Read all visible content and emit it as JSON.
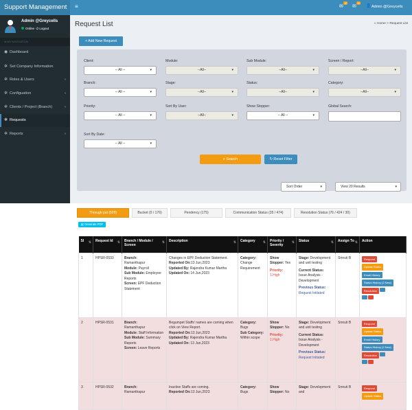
{
  "app": {
    "title": "Support Management"
  },
  "topbar": {
    "notif1_count": "10",
    "notif2_count": "10",
    "admin_label": "Admin @Greycells"
  },
  "user": {
    "name": "Admin @Greycells",
    "status": "Online",
    "logout": "Logout"
  },
  "sidebar": {
    "header": "MAIN NAVIGATION",
    "items": [
      {
        "label": "Dashboard"
      },
      {
        "label": "Set Company Information"
      },
      {
        "label": "Roles & Users"
      },
      {
        "label": "Configuation"
      },
      {
        "label": "Clients / Project (Branch)"
      },
      {
        "label": "Requests"
      },
      {
        "label": "Reports"
      }
    ]
  },
  "page": {
    "title": "Request List",
    "crumb_home": "Home",
    "crumb_sep": ">",
    "crumb_current": "Request List"
  },
  "filters": {
    "add_button": "+ Add New Request",
    "client": {
      "label": "Client:",
      "value": "-- All --"
    },
    "module": {
      "label": "Module:",
      "value": "--All--"
    },
    "submodule": {
      "label": "Sub Module:",
      "value": "--All--"
    },
    "screen": {
      "label": "Screen / Report:",
      "value": "--All--"
    },
    "branch": {
      "label": "Branch:",
      "value": "-- All --"
    },
    "stage": {
      "label": "Stage:",
      "value": "--All--"
    },
    "status": {
      "label": "Status:",
      "value": "--All--"
    },
    "category": {
      "label": "Category:",
      "value": "--All--"
    },
    "priority": {
      "label": "Priority:",
      "value": "-- All --"
    },
    "sortuser": {
      "label": "Sort By User:",
      "value": "--All--"
    },
    "stopper": {
      "label": "Show Stopper:",
      "value": "-- All --"
    },
    "globalsearch": {
      "label": "Global Search:",
      "value": ""
    },
    "sortdate": {
      "label": "Sort By Date:",
      "value": "-- All --"
    },
    "search_button": "Search",
    "reset_button": "Reset Filter"
  },
  "sorting": {
    "order": "Sort Order",
    "view": "View 20 Results"
  },
  "tabs": [
    {
      "label": "Through put (509)"
    },
    {
      "label": "Bucket (0 / 176)"
    },
    {
      "label": "Pendency (175)"
    },
    {
      "label": "Communication Status (35 / 474)"
    },
    {
      "label": "Resolution Status (76 / 424 / 30)"
    }
  ],
  "pdf_button": "Generate PDF",
  "table": {
    "headers": [
      "Sl",
      "Request Id",
      "Branch / Module / Screen",
      "Description",
      "Category",
      "Priority / Severity",
      "Status",
      "Assign To",
      "Action"
    ],
    "rows": [
      {
        "sl": "1",
        "id": "HPSR-0533",
        "branch": "Ramanthapur",
        "module": "Payroll",
        "submodule": "Employee Reports",
        "screen": "EPF Deduction Statement",
        "desc": "Changes in EPF Deduction Statement.",
        "reported": "13 Jun,2023",
        "updatedby": "Rajendra Kumar Martha",
        "updatedon": "14 Jun,2023",
        "category": "Change Requirement",
        "cat_sub": "",
        "stopper": "Yes",
        "priority": "1.High",
        "stage": "Development and unit testing",
        "curstatus": "Issue Analysis - Development",
        "prevstatus": "Request Initiated",
        "assign": "Smruti B"
      },
      {
        "sl": "2",
        "id": "HPSR-0531",
        "branch": "Ramanthapur",
        "module": "Staff Information",
        "submodule": "Summary Reports",
        "screen": "Leave Reports",
        "desc": "Begumpet Staffs' names are coming when click on View Report.",
        "reported": "13 Jun,2023",
        "updatedby": "Rajendra Kumar Martha",
        "updatedon": "13 Jun,2023",
        "category": "Bugs",
        "cat_sub": "Within scope",
        "stopper": "No",
        "priority": "1.High",
        "stage": "Development and unit testing",
        "curstatus": "Issue Analysis - Development",
        "prevstatus": "Request Initiated",
        "assign": "Smruti B"
      },
      {
        "sl": "3",
        "id": "HPSR-0532",
        "branch": "Ramanthapur",
        "module": "",
        "submodule": "",
        "screen": "",
        "desc": "Inactive Staffs are coming.",
        "reported": "13 Jun,2023",
        "updatedby": "",
        "updatedon": "",
        "category": "Bugs",
        "cat_sub": "",
        "stopper": "No",
        "priority": "",
        "stage": "Development and",
        "curstatus": "",
        "prevstatus": "",
        "assign": "Smruti B"
      }
    ],
    "labels": {
      "branch": "Branch:",
      "module": "Module:",
      "submodule": "Sub Module:",
      "screen": "Screen:",
      "reported": "Reported On:",
      "updatedby": "Updated By:",
      "updatedon": "Updated On:",
      "category": "Category:",
      "sub": "Sub Category:",
      "stopper": "Show Stopper:",
      "priority": "Priority:",
      "stage": "Stage:",
      "curstatus": "Current Status:",
      "prevstatus": "Previous Status:"
    },
    "actions": {
      "respond": "Respond",
      "update": "Update Status",
      "email": "Email History",
      "history": "Status History (2 New)",
      "resolution": "Resolution"
    }
  }
}
